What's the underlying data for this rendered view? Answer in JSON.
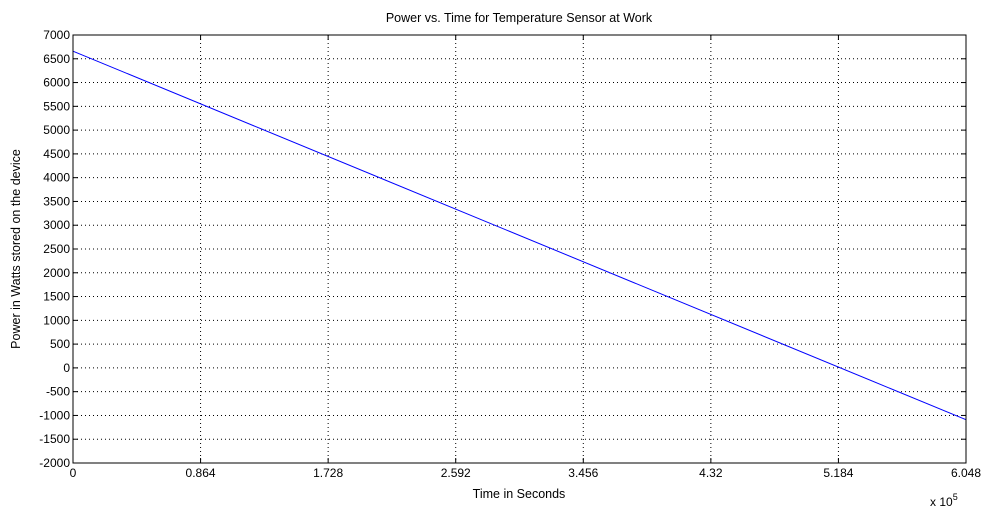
{
  "chart_data": {
    "type": "line",
    "title": "Power vs. Time for Temperature Sensor at Work",
    "xlabel": "Time in Seconds",
    "ylabel": "Power in Watts stored on the device",
    "x_exponent_label": "x 10",
    "x_exponent_power": "5",
    "xlim": [
      0,
      604800
    ],
    "ylim": [
      -2000,
      7000
    ],
    "x_tick_values": [
      0,
      86400,
      172800,
      259200,
      345600,
      432000,
      518400,
      604800
    ],
    "x_tick_labels": [
      "0",
      "0.864",
      "1.728",
      "2.592",
      "3.456",
      "4.32",
      "5.184",
      "6.048"
    ],
    "y_tick_values": [
      -2000,
      -1500,
      -1000,
      -500,
      0,
      500,
      1000,
      1500,
      2000,
      2500,
      3000,
      3500,
      4000,
      4500,
      5000,
      5500,
      6000,
      6500,
      7000
    ],
    "y_tick_labels": [
      "-2000",
      "-1500",
      "-1000",
      "-500",
      "0",
      "500",
      "1000",
      "1500",
      "2000",
      "2500",
      "3000",
      "3500",
      "4000",
      "4500",
      "5000",
      "5500",
      "6000",
      "6500",
      "7000"
    ],
    "grid": true,
    "grid_style": "dotted",
    "series": [
      {
        "color": "#0000ff",
        "x": [
          0,
          604800
        ],
        "y": [
          6660,
          -1090
        ]
      }
    ]
  }
}
